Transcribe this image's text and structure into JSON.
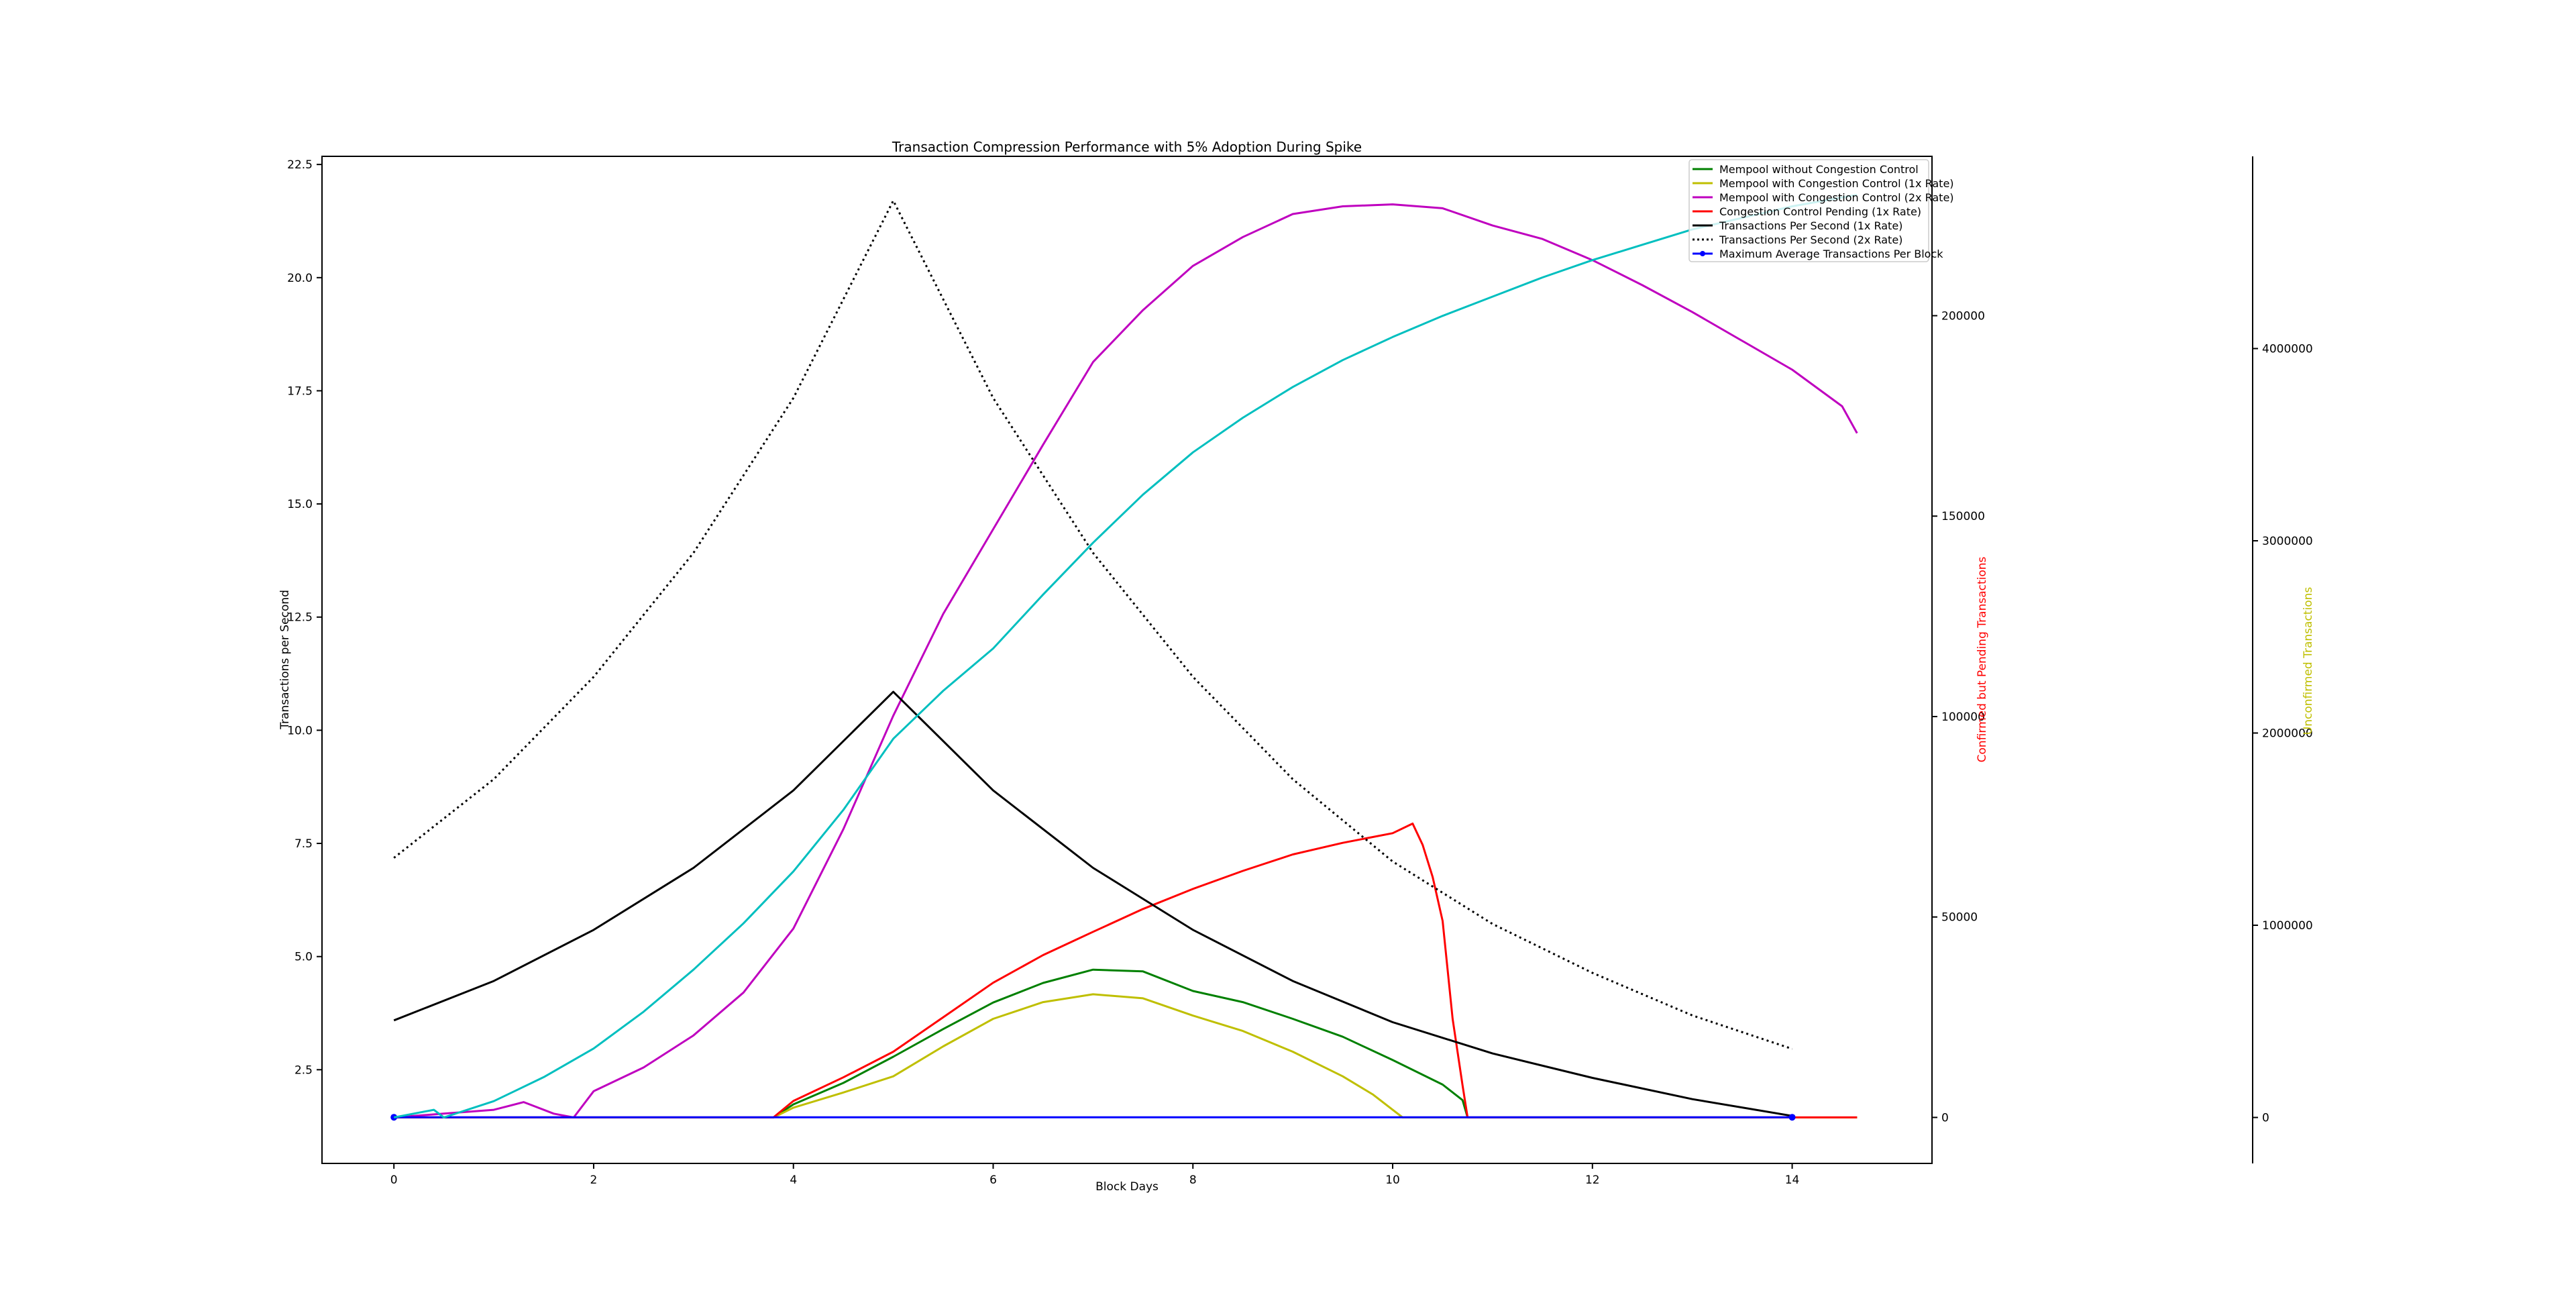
{
  "chart_data": {
    "type": "line",
    "title": "Transaction Compression Performance with 5% Adoption During Spike",
    "xlabel": "Block Days",
    "xlim": [
      -0.72,
      15.4
    ],
    "x_ticks": [
      "0",
      "2",
      "4",
      "6",
      "8",
      "10",
      "12",
      "14"
    ],
    "axes": {
      "left": {
        "ylabel": "Transactions per Second",
        "ylim": [
          0.43,
          22.68
        ],
        "ticks": [
          "2.5",
          "5.0",
          "7.5",
          "10.0",
          "12.5",
          "15.0",
          "17.5",
          "20.0",
          "22.5"
        ],
        "label_color": "#000000"
      },
      "right1": {
        "ylabel": "Confirmed but Pending Transactions",
        "ylim": [
          -11475,
          239754
        ],
        "ticks": [
          "0",
          "50000",
          "100000",
          "150000",
          "200000"
        ],
        "label_color": "#ff0000"
      },
      "right2": {
        "ylabel": "Unconfirmed Transactions",
        "ylim": [
          -239000,
          5000000
        ],
        "ticks": [
          "0",
          "1000000",
          "2000000",
          "3000000",
          "4000000"
        ],
        "label_color": "#bfbf00"
      }
    },
    "legend_position": "top-right",
    "grid": false,
    "series": [
      {
        "name": "Mempool without Congestion Control",
        "color": "#008000",
        "axis": "right2",
        "style": "solid",
        "x": [
          0,
          3.8,
          4,
          4.5,
          5,
          5.5,
          6,
          6.5,
          7,
          7.5,
          8,
          8.5,
          9,
          9.5,
          10,
          10.5,
          10.7,
          10.75,
          14.65
        ],
        "y": [
          0,
          0,
          68000,
          180000,
          316000,
          460000,
          598000,
          700000,
          769000,
          760000,
          658000,
          600000,
          513000,
          420000,
          299000,
          171000,
          90000,
          0,
          0
        ]
      },
      {
        "name": "Mempool with Congestion Control (1x Rate)",
        "color": "#bfbf00",
        "axis": "right2",
        "style": "solid",
        "x": [
          0,
          3.8,
          4,
          4.5,
          5,
          5.5,
          6,
          6.5,
          7,
          7.5,
          8,
          8.5,
          9,
          9.5,
          9.8,
          10.1,
          14.65
        ],
        "y": [
          0,
          0,
          51000,
          130000,
          214000,
          370000,
          513000,
          600000,
          641000,
          620000,
          530000,
          450000,
          342000,
          214000,
          120000,
          0,
          0
        ]
      },
      {
        "name": "Mempool with Congestion Control (2x Rate)",
        "color": "#bf00bf",
        "axis": "right2",
        "style": "solid",
        "x": [
          0,
          0.5,
          1,
          1.3,
          1.6,
          1.8,
          2,
          2.5,
          3,
          3.5,
          4,
          4.5,
          5,
          5.5,
          6,
          6.5,
          7,
          7.5,
          8,
          8.5,
          9,
          9.5,
          10,
          10.5,
          11,
          11.5,
          12,
          12.5,
          13,
          13.5,
          14,
          14.5,
          14.65
        ],
        "y": [
          0,
          20000,
          40000,
          80000,
          20000,
          0,
          137000,
          260000,
          427000,
          650000,
          983000,
          1500000,
          2090000,
          2620000,
          3060000,
          3500000,
          3930000,
          4200000,
          4430000,
          4580000,
          4700000,
          4740000,
          4750000,
          4730000,
          4640000,
          4570000,
          4460000,
          4330000,
          4190000,
          4040000,
          3890000,
          3700000,
          3560000
        ]
      },
      {
        "name": "Congestion Control Pending (1x Rate)",
        "color": "#ff0000",
        "axis": "right1",
        "style": "solid",
        "x": [
          0,
          3.8,
          4,
          4.5,
          5,
          5.5,
          6,
          6.5,
          7,
          7.5,
          8,
          8.5,
          9,
          9.5,
          10,
          10.2,
          10.3,
          10.4,
          10.5,
          10.6,
          10.7,
          10.75,
          14.65
        ],
        "y": [
          0,
          0,
          4100,
          10000,
          16400,
          25000,
          33600,
          40500,
          46300,
          52000,
          57000,
          61500,
          65600,
          68500,
          70900,
          73300,
          68000,
          60000,
          49000,
          24600,
          8000,
          0,
          0
        ]
      },
      {
        "name": "Transactions Per Second (1x Rate)",
        "color": "#000000",
        "axis": "left",
        "style": "solid",
        "x": [
          0,
          1,
          2,
          3,
          4,
          5,
          6,
          7,
          8,
          9,
          10,
          11,
          12,
          13,
          14
        ],
        "y": [
          3.59,
          4.46,
          5.59,
          6.96,
          8.67,
          10.85,
          8.67,
          6.96,
          5.59,
          4.46,
          3.55,
          2.86,
          2.32,
          1.85,
          1.48
        ]
      },
      {
        "name": "Transactions Per Second (2x Rate)",
        "color": "#000000",
        "axis": "left",
        "style": "dotted",
        "x": [
          0,
          1,
          2,
          3,
          4,
          5,
          6,
          7,
          8,
          9,
          10,
          11,
          12,
          13,
          14
        ],
        "y": [
          7.18,
          8.92,
          11.18,
          13.92,
          17.34,
          21.7,
          17.34,
          13.92,
          11.18,
          8.92,
          7.1,
          5.72,
          4.64,
          3.7,
          2.96
        ]
      },
      {
        "name": "Maximum Average Transactions Per Block",
        "color": "#0000ff",
        "axis": "left",
        "style": "solid-marker",
        "x": [
          0,
          14
        ],
        "y": [
          1.45,
          1.45
        ]
      },
      {
        "color": "#00bfbf",
        "axis": "right2",
        "style": "solid",
        "x": [
          0,
          0.4,
          0.5,
          1,
          1.5,
          2,
          2.5,
          3,
          3.5,
          4,
          4.5,
          5,
          5.5,
          6,
          6.5,
          7,
          7.5,
          8,
          8.5,
          9,
          9.5,
          10,
          10.5,
          11,
          11.5,
          12,
          12.5,
          13,
          13.5,
          14,
          14.65
        ],
        "y": [
          0,
          40000,
          0,
          85000,
          210000,
          359000,
          550000,
          769000,
          1010000,
          1280000,
          1600000,
          1970000,
          2220000,
          2440000,
          2720000,
          2990000,
          3240000,
          3460000,
          3640000,
          3800000,
          3940000,
          4060000,
          4170000,
          4270000,
          4370000,
          4460000,
          4540000,
          4620000,
          4680000,
          4740000,
          4800000
        ]
      }
    ]
  }
}
